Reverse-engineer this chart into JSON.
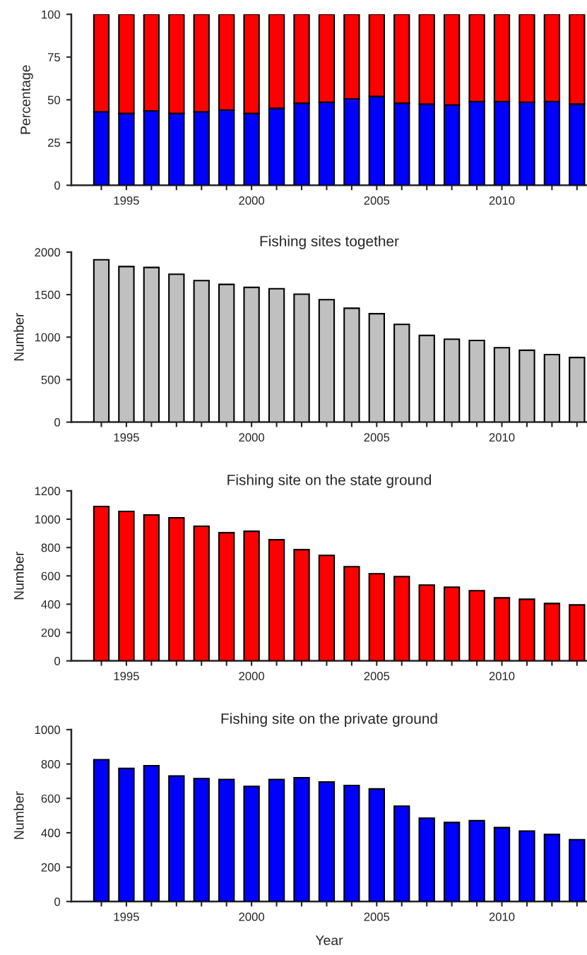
{
  "chart_data": [
    {
      "type": "bar",
      "stacked": true,
      "ylabel": "Percentage",
      "x": [
        1994,
        1995,
        1996,
        1997,
        1998,
        1999,
        2000,
        2001,
        2002,
        2003,
        2004,
        2005,
        2006,
        2007,
        2008,
        2009,
        2010,
        2011,
        2012,
        2013
      ],
      "series": [
        {
          "color": "#0000ff",
          "values": [
            43,
            42,
            43.5,
            42,
            43,
            44,
            42,
            45,
            48,
            48.5,
            50.5,
            52,
            48,
            47.5,
            47,
            49,
            49,
            48.5,
            49,
            47.5
          ]
        },
        {
          "color": "#ff0000",
          "values": [
            57,
            58,
            56.5,
            58,
            57,
            56,
            58,
            55,
            52,
            51.5,
            49.5,
            48,
            52,
            52.5,
            53,
            51,
            51,
            51.5,
            51,
            52.5
          ]
        }
      ],
      "xlim": [
        1992.8,
        2013.4
      ],
      "ylim": [
        0,
        100
      ],
      "yticks": [
        0,
        25,
        50,
        75,
        100
      ],
      "xticks": [
        {
          "value": 1994,
          "label": null
        },
        1995,
        {
          "value": 1996,
          "label": null
        },
        {
          "value": 1997,
          "label": null
        },
        {
          "value": 1998,
          "label": null
        },
        {
          "value": 1999,
          "label": null
        },
        2000,
        {
          "value": 2001,
          "label": null
        },
        {
          "value": 2002,
          "label": null
        },
        {
          "value": 2003,
          "label": null
        },
        {
          "value": 2004,
          "label": null
        },
        2005,
        {
          "value": 2006,
          "label": null
        },
        {
          "value": 2007,
          "label": null
        },
        {
          "value": 2008,
          "label": null
        },
        {
          "value": 2009,
          "label": null
        },
        2010,
        {
          "value": 2011,
          "label": null
        },
        {
          "value": 2012,
          "label": null
        },
        {
          "value": 2013,
          "label": null
        }
      ]
    },
    {
      "type": "bar",
      "title": "Fishing sites together",
      "ylabel": "Number",
      "x": [
        1994,
        1995,
        1996,
        1997,
        1998,
        1999,
        2000,
        2001,
        2002,
        2003,
        2004,
        2005,
        2006,
        2007,
        2008,
        2009,
        2010,
        2011,
        2012,
        2013
      ],
      "series": [
        {
          "color": "#c0c0c0",
          "values": [
            1910,
            1830,
            1820,
            1740,
            1665,
            1620,
            1585,
            1570,
            1505,
            1440,
            1340,
            1275,
            1150,
            1020,
            975,
            960,
            875,
            845,
            795,
            760
          ]
        }
      ],
      "xlim": [
        1992.8,
        2013.4
      ],
      "ylim": [
        0,
        2000
      ],
      "yticks": [
        0,
        500,
        1000,
        1500,
        2000
      ],
      "xticks": [
        {
          "value": 1994,
          "label": null
        },
        1995,
        {
          "value": 1996,
          "label": null
        },
        {
          "value": 1997,
          "label": null
        },
        {
          "value": 1998,
          "label": null
        },
        {
          "value": 1999,
          "label": null
        },
        2000,
        {
          "value": 2001,
          "label": null
        },
        {
          "value": 2002,
          "label": null
        },
        {
          "value": 2003,
          "label": null
        },
        {
          "value": 2004,
          "label": null
        },
        2005,
        {
          "value": 2006,
          "label": null
        },
        {
          "value": 2007,
          "label": null
        },
        {
          "value": 2008,
          "label": null
        },
        {
          "value": 2009,
          "label": null
        },
        2010,
        {
          "value": 2011,
          "label": null
        },
        {
          "value": 2012,
          "label": null
        },
        {
          "value": 2013,
          "label": null
        }
      ]
    },
    {
      "type": "bar",
      "title": "Fishing site on the state ground",
      "ylabel": "Number",
      "x": [
        1994,
        1995,
        1996,
        1997,
        1998,
        1999,
        2000,
        2001,
        2002,
        2003,
        2004,
        2005,
        2006,
        2007,
        2008,
        2009,
        2010,
        2011,
        2012,
        2013
      ],
      "series": [
        {
          "color": "#ff0000",
          "values": [
            1090,
            1055,
            1030,
            1010,
            950,
            905,
            915,
            855,
            785,
            745,
            665,
            615,
            595,
            535,
            520,
            495,
            445,
            435,
            405,
            395
          ]
        }
      ],
      "xlim": [
        1992.8,
        2013.4
      ],
      "ylim": [
        0,
        1200
      ],
      "yticks": [
        0,
        200,
        400,
        600,
        800,
        1000,
        1200
      ],
      "xticks": [
        {
          "value": 1994,
          "label": null
        },
        1995,
        {
          "value": 1996,
          "label": null
        },
        {
          "value": 1997,
          "label": null
        },
        {
          "value": 1998,
          "label": null
        },
        {
          "value": 1999,
          "label": null
        },
        2000,
        {
          "value": 2001,
          "label": null
        },
        {
          "value": 2002,
          "label": null
        },
        {
          "value": 2003,
          "label": null
        },
        {
          "value": 2004,
          "label": null
        },
        2005,
        {
          "value": 2006,
          "label": null
        },
        {
          "value": 2007,
          "label": null
        },
        {
          "value": 2008,
          "label": null
        },
        {
          "value": 2009,
          "label": null
        },
        2010,
        {
          "value": 2011,
          "label": null
        },
        {
          "value": 2012,
          "label": null
        },
        {
          "value": 2013,
          "label": null
        }
      ]
    },
    {
      "type": "bar",
      "title": "Fishing site on the private ground",
      "ylabel": "Number",
      "xlabel": "Year",
      "x": [
        1994,
        1995,
        1996,
        1997,
        1998,
        1999,
        2000,
        2001,
        2002,
        2003,
        2004,
        2005,
        2006,
        2007,
        2008,
        2009,
        2010,
        2011,
        2012,
        2013
      ],
      "series": [
        {
          "color": "#0000ff",
          "values": [
            825,
            775,
            790,
            730,
            715,
            710,
            670,
            710,
            720,
            695,
            675,
            655,
            555,
            485,
            460,
            470,
            430,
            410,
            390,
            360
          ]
        }
      ],
      "xlim": [
        1992.8,
        2013.4
      ],
      "ylim": [
        0,
        1000
      ],
      "yticks": [
        0,
        200,
        400,
        600,
        800,
        1000
      ],
      "xticks": [
        {
          "value": 1994,
          "label": null
        },
        1995,
        {
          "value": 1996,
          "label": null
        },
        {
          "value": 1997,
          "label": null
        },
        {
          "value": 1998,
          "label": null
        },
        {
          "value": 1999,
          "label": null
        },
        2000,
        {
          "value": 2001,
          "label": null
        },
        {
          "value": 2002,
          "label": null
        },
        {
          "value": 2003,
          "label": null
        },
        {
          "value": 2004,
          "label": null
        },
        2005,
        {
          "value": 2006,
          "label": null
        },
        {
          "value": 2007,
          "label": null
        },
        {
          "value": 2008,
          "label": null
        },
        {
          "value": 2009,
          "label": null
        },
        2010,
        {
          "value": 2011,
          "label": null
        },
        {
          "value": 2012,
          "label": null
        },
        {
          "value": 2013,
          "label": null
        }
      ]
    }
  ]
}
